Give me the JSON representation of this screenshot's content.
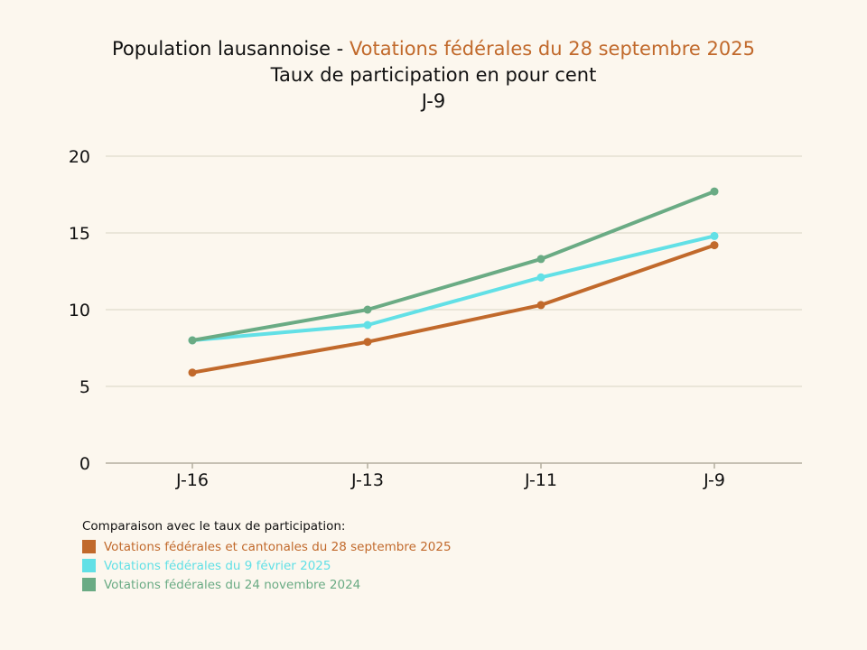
{
  "header": {
    "title_prefix": "Population lausannoise - ",
    "title_accent": "Votations fédérales du 28 septembre 2025",
    "subtitle": "Taux de participation en pour cent",
    "period": "J-9"
  },
  "colors": {
    "background": "#fcf7ee",
    "accent": "#c1692b",
    "grid": "#d9d4c4",
    "axis": "#b3ae9f"
  },
  "chart_data": {
    "type": "line",
    "categories": [
      "J-16",
      "J-13",
      "J-11",
      "J-9"
    ],
    "ylim": [
      0,
      20
    ],
    "yticks": [
      0,
      5,
      10,
      15,
      20
    ],
    "grid": true,
    "series": [
      {
        "name": "Votations fédérales et cantonales du 28 septembre 2025",
        "color": "#c1692b",
        "values": [
          5.9,
          7.9,
          10.3,
          14.2
        ]
      },
      {
        "name": "Votations fédérales du 9 février 2025",
        "color": "#62e0e6",
        "values": [
          8.0,
          9.0,
          12.1,
          14.8
        ]
      },
      {
        "name": "Votations fédérales du 24 novembre 2024",
        "color": "#6aab84",
        "values": [
          8.0,
          10.0,
          13.3,
          17.7
        ]
      }
    ],
    "legend": {
      "title": "Comparaison avec le taux de participation:",
      "position": "bottom-left"
    }
  }
}
